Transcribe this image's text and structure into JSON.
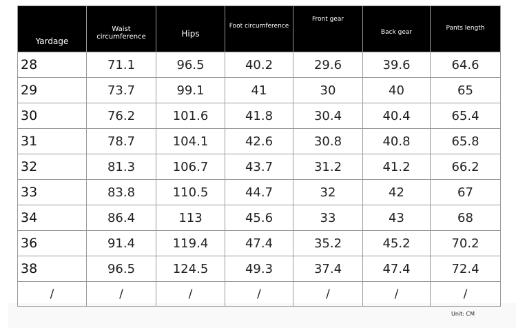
{
  "headers": [
    "Yardage",
    "Waist circumference",
    "Hips",
    "Foot circumference",
    "Front gear",
    "Back gear",
    "Pants length"
  ],
  "rows": [
    [
      "28",
      "71.1",
      "96.5",
      "40.2",
      "29.6",
      "39.6",
      "64.6"
    ],
    [
      "29",
      "73.7",
      "99.1",
      "41",
      "30",
      "40",
      "65"
    ],
    [
      "30",
      "76.2",
      "101.6",
      "41.8",
      "30.4",
      "40.4",
      "65.4"
    ],
    [
      "31",
      "78.7",
      "104.1",
      "42.6",
      "30.8",
      "40.8",
      "65.8"
    ],
    [
      "32",
      "81.3",
      "106.7",
      "43.7",
      "31.2",
      "41.2",
      "66.2"
    ],
    [
      "33",
      "83.8",
      "110.5",
      "44.7",
      "32",
      "42",
      "67"
    ],
    [
      "34",
      "86.4",
      "113",
      "45.6",
      "33",
      "43",
      "68"
    ],
    [
      "36",
      "91.4",
      "119.4",
      "47.4",
      "35.2",
      "45.2",
      "70.2"
    ],
    [
      "38",
      "96.5",
      "124.5",
      "49.3",
      "37.4",
      "47.4",
      "72.4"
    ],
    [
      "/",
      "/",
      "/",
      "/",
      "/",
      "/",
      "/"
    ]
  ],
  "unit": "Unit: CM"
}
